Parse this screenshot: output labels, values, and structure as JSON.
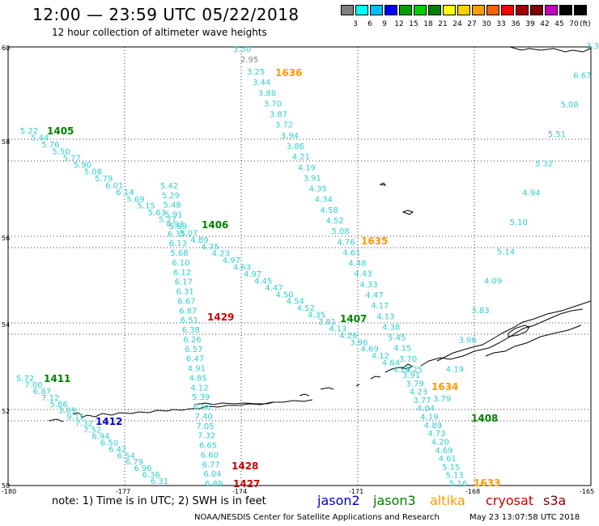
{
  "header": {
    "title": "12:00 — 23:59 UTC 05/22/2018",
    "subtitle": "12 hour collection of altimeter wave heights"
  },
  "colorbar": {
    "unit": "(ft)",
    "labels": [
      "3",
      "6",
      "9",
      "12",
      "15",
      "18",
      "21",
      "24",
      "27",
      "30",
      "33",
      "36",
      "39",
      "42",
      "45",
      "70"
    ],
    "colors": [
      "#808080",
      "#00ffff",
      "#00c0ff",
      "#0000ff",
      "#00a000",
      "#00d000",
      "#008000",
      "#ffff00",
      "#ffd000",
      "#ffa000",
      "#ff6000",
      "#ff0000",
      "#a00000",
      "#800000",
      "#c000c0",
      "#000000",
      "#000000"
    ]
  },
  "axes": {
    "lat_labels": [
      "60",
      "58",
      "56",
      "54",
      "52",
      "50"
    ],
    "lon_labels": [
      "-180",
      "-177",
      "-174",
      "-171",
      "-168",
      "-165"
    ]
  },
  "legend": {
    "note": "note:  1) Time is in UTC;  2) SWH is in feet",
    "satellites": [
      {
        "name": "jason2",
        "color": "#0000cc"
      },
      {
        "name": "jason3",
        "color": "#008000"
      },
      {
        "name": "altika",
        "color": "#ff9900"
      },
      {
        "name": "cryosat",
        "color": "#cc0000"
      },
      {
        "name": "s3a",
        "color": "#800000"
      }
    ]
  },
  "footer": {
    "credit": "NOAA/NESDIS Center for Satellite Applications and Research",
    "timestamp": "May 23 13:07:58 UTC 2018"
  },
  "pass_labels": [
    {
      "text": "1636",
      "color": "#ff9900"
    },
    {
      "text": "1405",
      "color": "#008000"
    },
    {
      "text": "1406",
      "color": "#008000"
    },
    {
      "text": "1635",
      "color": "#ff9900"
    },
    {
      "text": "1429",
      "color": "#cc0000"
    },
    {
      "text": "1407",
      "color": "#008000"
    },
    {
      "text": "1411",
      "color": "#008000"
    },
    {
      "text": "1412",
      "color": "#0000cc"
    },
    {
      "text": "1634",
      "color": "#ff9900"
    },
    {
      "text": "1408",
      "color": "#008000"
    },
    {
      "text": "1428",
      "color": "#cc0000"
    },
    {
      "text": "1427",
      "color": "#cc0000"
    },
    {
      "text": "1633",
      "color": "#ff9900"
    }
  ],
  "tracks": {
    "t1636": [
      "3.50",
      "2.95",
      "3.25",
      "3.44",
      "3.88",
      "3.70",
      "3.87",
      "3.72",
      "3.94",
      "3.86",
      "4.21",
      "4.19",
      "3.91",
      "4.35",
      "4.34",
      "4.58",
      "4.52",
      "5.08",
      "4.76",
      "4.61",
      "4.48",
      "4.43",
      "4.33",
      "4.47",
      "4.17",
      "4.13",
      "4.38",
      "5.45",
      "4.15",
      "3.70",
      "4.25"
    ],
    "t1405": [
      "5.22",
      "5.44",
      "5.76",
      "5.50",
      "5.77",
      "5.90",
      "5.08",
      "5.79",
      "6.01",
      "6.14",
      "5.69",
      "5.15",
      "5.63",
      "5.27",
      "5.89",
      "5.07",
      "4.89",
      "4.75",
      "4.23",
      "4.97",
      "4.63",
      "4.97",
      "4.45",
      "4.47",
      "4.50",
      "4.54",
      "4.52",
      "4.35",
      "3.81",
      "4.13",
      "4.26",
      "3.96",
      "4.69",
      "4.12",
      "4.64",
      "4.25"
    ],
    "t1429": [
      "5.42",
      "5.29",
      "5.48",
      "5.91",
      "4.93",
      "6.35",
      "6.13",
      "5.68",
      "6.10",
      "6.12",
      "6.17",
      "6.31",
      "6.67",
      "6.87",
      "6.51",
      "6.38",
      "6.26",
      "6.57",
      "6.47",
      "4.91",
      "4.85",
      "4.12",
      "5.39",
      "6.98",
      "7.40",
      "7.05",
      "7.32",
      "6.65",
      "6.60",
      "6.77",
      "6.04",
      "6.89"
    ],
    "t1411": [
      "5.72",
      "7.00",
      "6.87",
      "7.12",
      "5.86",
      "3.89",
      "9.15",
      "7.32",
      "7.52",
      "6.94",
      "6.50",
      "6.42",
      "6.54",
      "6.79",
      "6.96",
      "6.36",
      "6.31"
    ],
    "t1634": [
      "3.91",
      "3.79",
      "4.23",
      "3.77",
      "4.04",
      "4.19",
      "4.89",
      "4.73",
      "4.20",
      "4.69",
      "4.61",
      "5.15",
      "5.13",
      "5.16"
    ],
    "t1408": [
      "3.79",
      "4.19",
      "3.96",
      "3.83",
      "4.09",
      "5.14",
      "5.10",
      "4.94",
      "5.32",
      "5.51",
      "5.08",
      "6.67",
      "3.31"
    ]
  }
}
